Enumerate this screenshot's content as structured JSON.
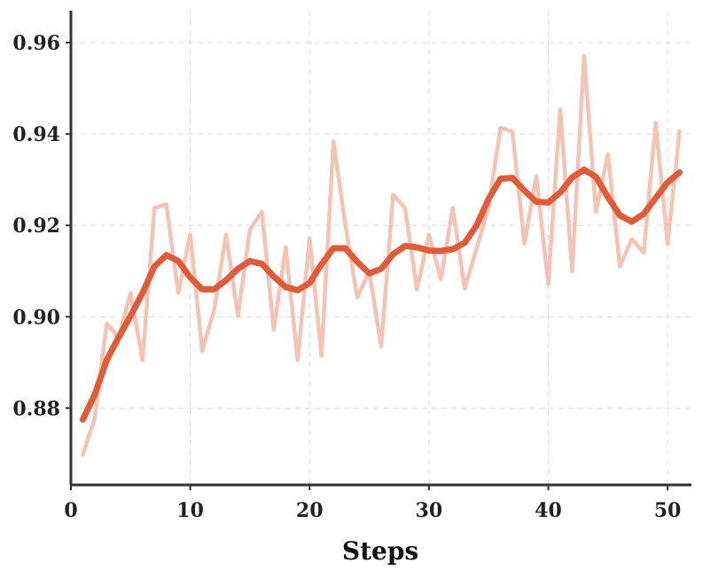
{
  "chart_data": {
    "type": "line",
    "title": "",
    "xlabel": "Steps",
    "ylabel": "",
    "xlim": [
      0,
      52
    ],
    "ylim": [
      0.8632,
      0.967
    ],
    "xticks": [
      0,
      10,
      20,
      30,
      40,
      50
    ],
    "yticks": [
      0.88,
      0.9,
      0.92,
      0.94,
      0.96
    ],
    "xtick_labels": [
      "0",
      "10",
      "20",
      "30",
      "40",
      "50"
    ],
    "ytick_labels": [
      "0.88",
      "0.90",
      "0.92",
      "0.94",
      "0.96"
    ],
    "grid": true,
    "x": [
      1,
      2,
      3,
      4,
      5,
      6,
      7,
      8,
      9,
      10,
      11,
      12,
      13,
      14,
      15,
      16,
      17,
      18,
      19,
      20,
      21,
      22,
      23,
      24,
      25,
      26,
      27,
      28,
      29,
      30,
      31,
      32,
      33,
      34,
      35,
      36,
      37,
      38,
      39,
      40,
      41,
      42,
      43,
      44,
      45,
      46,
      47,
      48,
      49,
      50,
      51
    ],
    "series": [
      {
        "name": "",
        "color": "#f5c3b4",
        "values": [
          0.8698,
          0.8778,
          0.8985,
          0.8955,
          0.9052,
          0.8905,
          0.9238,
          0.9246,
          0.9052,
          0.918,
          0.8925,
          0.9015,
          0.918,
          0.9002,
          0.919,
          0.923,
          0.8972,
          0.9152,
          0.8905,
          0.9172,
          0.8915,
          0.9384,
          0.92,
          0.9042,
          0.91,
          0.8935,
          0.9267,
          0.9238,
          0.906,
          0.918,
          0.9082,
          0.9238,
          0.9062,
          0.915,
          0.924,
          0.9414,
          0.9405,
          0.916,
          0.9308,
          0.9072,
          0.9454,
          0.91,
          0.9571,
          0.923,
          0.9356,
          0.911,
          0.917,
          0.914,
          0.9424,
          0.916,
          0.9406
        ]
      },
      {
        "name": "",
        "color": "#e35a37",
        "values": [
          0.8775,
          0.883,
          0.8905,
          0.8955,
          0.9002,
          0.9052,
          0.911,
          0.9135,
          0.9122,
          0.9086,
          0.906,
          0.906,
          0.908,
          0.9105,
          0.9122,
          0.9116,
          0.9088,
          0.9065,
          0.9058,
          0.9074,
          0.9115,
          0.915,
          0.915,
          0.912,
          0.9095,
          0.9105,
          0.9137,
          0.9155,
          0.9152,
          0.9145,
          0.9144,
          0.9148,
          0.9162,
          0.92,
          0.9258,
          0.9302,
          0.9304,
          0.9276,
          0.9252,
          0.925,
          0.9272,
          0.9305,
          0.9322,
          0.9306,
          0.9262,
          0.9222,
          0.9208,
          0.9225,
          0.926,
          0.9294,
          0.9316
        ]
      }
    ]
  }
}
